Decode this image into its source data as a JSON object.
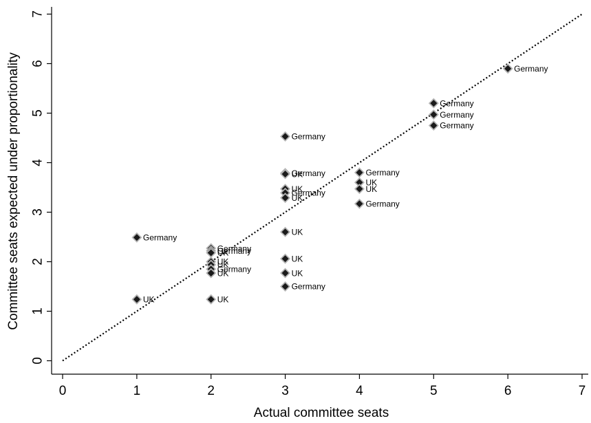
{
  "chart_data": {
    "type": "scatter",
    "title": "",
    "xlabel": "Actual committee seats",
    "ylabel": "Committee seats expected under proportionality",
    "xlim": [
      0,
      7
    ],
    "ylim": [
      0,
      7
    ],
    "x_ticks": [
      "0",
      "1",
      "2",
      "3",
      "4",
      "5",
      "6",
      "7"
    ],
    "y_ticks": [
      "0",
      "1",
      "2",
      "3",
      "4",
      "5",
      "6",
      "7"
    ],
    "grid": false,
    "reference_line": {
      "style": "dotted",
      "from": [
        0,
        0
      ],
      "to": [
        7,
        7
      ]
    },
    "points": [
      {
        "x": 1,
        "y": 2.49,
        "label": "Germany"
      },
      {
        "x": 1,
        "y": 1.24,
        "label": "UK"
      },
      {
        "x": 2,
        "y": 2.27,
        "label": "Germany"
      },
      {
        "x": 2,
        "y": 2.22,
        "label": "Germany"
      },
      {
        "x": 2,
        "y": 2.18,
        "label": "UK"
      },
      {
        "x": 2,
        "y": 2.0,
        "label": "UK"
      },
      {
        "x": 2,
        "y": 1.94,
        "label": "UK"
      },
      {
        "x": 2,
        "y": 1.85,
        "label": "Germany"
      },
      {
        "x": 2,
        "y": 1.77,
        "label": "UK"
      },
      {
        "x": 2,
        "y": 1.24,
        "label": "UK"
      },
      {
        "x": 3,
        "y": 4.53,
        "label": "Germany"
      },
      {
        "x": 3,
        "y": 3.79,
        "label": "Germany"
      },
      {
        "x": 3,
        "y": 3.77,
        "label": "UK"
      },
      {
        "x": 3,
        "y": 3.47,
        "label": "UK"
      },
      {
        "x": 3,
        "y": 3.39,
        "label": "Germany"
      },
      {
        "x": 3,
        "y": 3.29,
        "label": "UK"
      },
      {
        "x": 3,
        "y": 2.6,
        "label": "UK"
      },
      {
        "x": 3,
        "y": 2.06,
        "label": "UK"
      },
      {
        "x": 3,
        "y": 1.77,
        "label": "UK"
      },
      {
        "x": 3,
        "y": 1.5,
        "label": "Germany"
      },
      {
        "x": 4,
        "y": 3.8,
        "label": "Germany"
      },
      {
        "x": 4,
        "y": 3.6,
        "label": "UK"
      },
      {
        "x": 4,
        "y": 3.47,
        "label": "UK"
      },
      {
        "x": 4,
        "y": 3.17,
        "label": "Germany"
      },
      {
        "x": 5,
        "y": 5.2,
        "label": "Germany"
      },
      {
        "x": 5,
        "y": 4.97,
        "label": "Germany"
      },
      {
        "x": 5,
        "y": 4.75,
        "label": "Germany"
      },
      {
        "x": 6,
        "y": 5.9,
        "label": "Germany"
      }
    ],
    "colors": {
      "marker_fill": "#1a1a1a",
      "marker_outline": "#b3b3b3"
    }
  }
}
